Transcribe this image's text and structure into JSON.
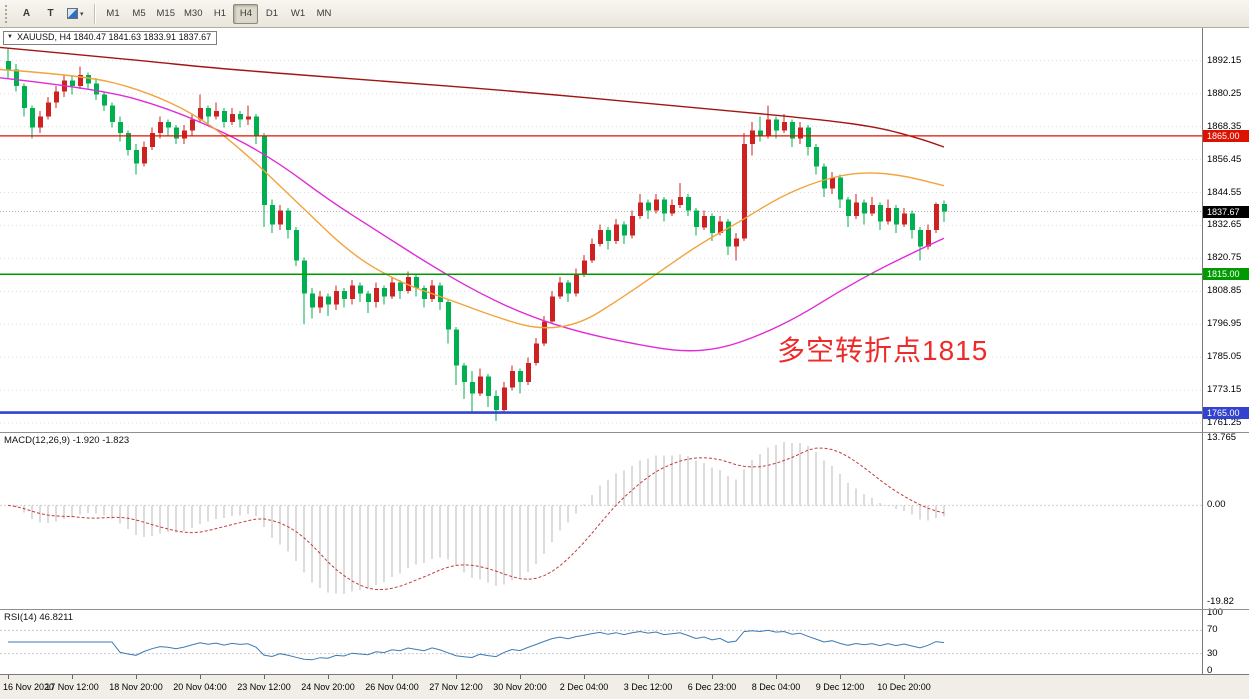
{
  "toolbar": {
    "tools": [
      {
        "label": "A",
        "name": "tool-button-a"
      },
      {
        "label": "T",
        "name": "tool-button-text"
      }
    ],
    "timeframes": [
      "M1",
      "M5",
      "M15",
      "M30",
      "H1",
      "H4",
      "D1",
      "W1",
      "MN"
    ],
    "active_timeframe": "H4"
  },
  "chart": {
    "info_box": "XAUUSD, H4 1840.47 1841.63 1833.91 1837.67",
    "annotation": {
      "text": "多空转折点1815",
      "color": "#ee2b2b"
    },
    "axis_labels": [
      "1892.15",
      "1880.25",
      "1868.35",
      "1856.45",
      "1844.55",
      "1832.65",
      "1820.75",
      "1808.85",
      "1796.95",
      "1785.05",
      "1773.15",
      "1761.25"
    ],
    "time_labels": [
      {
        "label": "16 Nov 2020",
        "bar": 0
      },
      {
        "label": "17 Nov 12:00",
        "bar": 8
      },
      {
        "label": "18 Nov 20:00",
        "bar": 16
      },
      {
        "label": "20 Nov 04:00",
        "bar": 24
      },
      {
        "label": "23 Nov 12:00",
        "bar": 32
      },
      {
        "label": "24 Nov 20:00",
        "bar": 40
      },
      {
        "label": "26 Nov 04:00",
        "bar": 48
      },
      {
        "label": "27 Nov 12:00",
        "bar": 56
      },
      {
        "label": "30 Nov 20:00",
        "bar": 64
      },
      {
        "label": "2 Dec 04:00",
        "bar": 72
      },
      {
        "label": "3 Dec 12:00",
        "bar": 80
      },
      {
        "label": "6 Dec 23:00",
        "bar": 88
      },
      {
        "label": "8 Dec 04:00",
        "bar": 96
      },
      {
        "label": "9 Dec 12:00",
        "bar": 104
      },
      {
        "label": "10 Dec 20:00",
        "bar": 112
      }
    ],
    "hlines": [
      {
        "price": 1865.0,
        "label": "1865.00",
        "color": "#dd1100",
        "width": 1.3
      },
      {
        "price": 1815.0,
        "label": "1815.00",
        "color": "#009b00",
        "width": 1.5
      },
      {
        "price": 1765.0,
        "label": "1765.00",
        "color": "#3342cf",
        "width": 2.6
      }
    ],
    "bid": {
      "price": 1837.67,
      "label": "1837.67",
      "color": "#000000"
    },
    "colors": {
      "up": "#cc2222",
      "down": "#00b050",
      "ma_orange": "#f2a33c",
      "ma_magenta": "#e02ad8",
      "ma_darkred": "#a31515",
      "grid": "#dedede"
    },
    "candles": [
      [
        1892,
        1897,
        1886,
        1889
      ],
      [
        1889,
        1891,
        1881,
        1883
      ],
      [
        1883,
        1884,
        1872,
        1875
      ],
      [
        1875,
        1876,
        1864,
        1868
      ],
      [
        1868,
        1874,
        1866,
        1872
      ],
      [
        1872,
        1879,
        1871,
        1877
      ],
      [
        1877,
        1883,
        1875,
        1881
      ],
      [
        1881,
        1887,
        1879,
        1885
      ],
      [
        1885,
        1887,
        1880,
        1883
      ],
      [
        1883,
        1890,
        1882,
        1887
      ],
      [
        1887,
        1888,
        1882,
        1884
      ],
      [
        1884,
        1886,
        1878,
        1880
      ],
      [
        1880,
        1881,
        1874,
        1876
      ],
      [
        1876,
        1877,
        1868,
        1870
      ],
      [
        1870,
        1872,
        1863,
        1866
      ],
      [
        1866,
        1867,
        1858,
        1860
      ],
      [
        1860,
        1862,
        1851,
        1855
      ],
      [
        1855,
        1863,
        1854,
        1861
      ],
      [
        1861,
        1868,
        1860,
        1866
      ],
      [
        1866,
        1872,
        1864,
        1870
      ],
      [
        1870,
        1871,
        1865,
        1868
      ],
      [
        1868,
        1869,
        1862,
        1864
      ],
      [
        1864,
        1869,
        1862,
        1867
      ],
      [
        1867,
        1873,
        1865,
        1871
      ],
      [
        1871,
        1880,
        1870,
        1875
      ],
      [
        1875,
        1876,
        1869,
        1872
      ],
      [
        1872,
        1877,
        1871,
        1874
      ],
      [
        1874,
        1875,
        1868,
        1870
      ],
      [
        1870,
        1875,
        1869,
        1873
      ],
      [
        1873,
        1874,
        1868,
        1871
      ],
      [
        1871,
        1876,
        1869,
        1872
      ],
      [
        1872,
        1873,
        1862,
        1865
      ],
      [
        1865,
        1866,
        1832,
        1840
      ],
      [
        1840,
        1842,
        1830,
        1833
      ],
      [
        1833,
        1840,
        1831,
        1838
      ],
      [
        1838,
        1839,
        1828,
        1831
      ],
      [
        1831,
        1832,
        1818,
        1820
      ],
      [
        1820,
        1821,
        1797,
        1808
      ],
      [
        1808,
        1810,
        1799,
        1803
      ],
      [
        1803,
        1809,
        1801,
        1807
      ],
      [
        1807,
        1808,
        1800,
        1804
      ],
      [
        1804,
        1811,
        1802,
        1809
      ],
      [
        1809,
        1810,
        1803,
        1806
      ],
      [
        1806,
        1813,
        1804,
        1811
      ],
      [
        1811,
        1812,
        1805,
        1808
      ],
      [
        1808,
        1809,
        1801,
        1805
      ],
      [
        1805,
        1812,
        1803,
        1810
      ],
      [
        1810,
        1811,
        1804,
        1807
      ],
      [
        1807,
        1814,
        1806,
        1812
      ],
      [
        1812,
        1813,
        1806,
        1809
      ],
      [
        1809,
        1816,
        1808,
        1814
      ],
      [
        1814,
        1815,
        1807,
        1810
      ],
      [
        1810,
        1811,
        1803,
        1806
      ],
      [
        1806,
        1813,
        1805,
        1811
      ],
      [
        1811,
        1812,
        1802,
        1805
      ],
      [
        1805,
        1806,
        1790,
        1795
      ],
      [
        1795,
        1796,
        1775,
        1782
      ],
      [
        1782,
        1783,
        1770,
        1776
      ],
      [
        1776,
        1780,
        1765,
        1772
      ],
      [
        1772,
        1781,
        1771,
        1778
      ],
      [
        1778,
        1779,
        1767,
        1771
      ],
      [
        1771,
        1773,
        1762,
        1766
      ],
      [
        1766,
        1776,
        1765,
        1774
      ],
      [
        1774,
        1782,
        1773,
        1780
      ],
      [
        1780,
        1781,
        1772,
        1776
      ],
      [
        1776,
        1785,
        1775,
        1783
      ],
      [
        1783,
        1792,
        1782,
        1790
      ],
      [
        1790,
        1800,
        1789,
        1798
      ],
      [
        1798,
        1809,
        1797,
        1807
      ],
      [
        1807,
        1814,
        1806,
        1812
      ],
      [
        1812,
        1813,
        1805,
        1808
      ],
      [
        1808,
        1817,
        1807,
        1815
      ],
      [
        1815,
        1822,
        1814,
        1820
      ],
      [
        1820,
        1828,
        1819,
        1826
      ],
      [
        1826,
        1833,
        1825,
        1831
      ],
      [
        1831,
        1832,
        1824,
        1827
      ],
      [
        1827,
        1835,
        1826,
        1833
      ],
      [
        1833,
        1834,
        1826,
        1829
      ],
      [
        1829,
        1838,
        1828,
        1836
      ],
      [
        1836,
        1844,
        1835,
        1841
      ],
      [
        1841,
        1842,
        1835,
        1838
      ],
      [
        1838,
        1844,
        1837,
        1842
      ],
      [
        1842,
        1843,
        1834,
        1837
      ],
      [
        1837,
        1842,
        1836,
        1840
      ],
      [
        1840,
        1848,
        1839,
        1843
      ],
      [
        1843,
        1844,
        1836,
        1838
      ],
      [
        1838,
        1839,
        1829,
        1832
      ],
      [
        1832,
        1838,
        1831,
        1836
      ],
      [
        1836,
        1837,
        1827,
        1830
      ],
      [
        1830,
        1836,
        1829,
        1834
      ],
      [
        1834,
        1835,
        1822,
        1825
      ],
      [
        1825,
        1830,
        1820,
        1828
      ],
      [
        1828,
        1866,
        1827,
        1862
      ],
      [
        1862,
        1870,
        1858,
        1867
      ],
      [
        1867,
        1872,
        1863,
        1865
      ],
      [
        1865,
        1876,
        1864,
        1871
      ],
      [
        1871,
        1872,
        1864,
        1867
      ],
      [
        1867,
        1873,
        1866,
        1870
      ],
      [
        1870,
        1871,
        1861,
        1864
      ],
      [
        1864,
        1870,
        1862,
        1868
      ],
      [
        1868,
        1869,
        1858,
        1861
      ],
      [
        1861,
        1862,
        1851,
        1854
      ],
      [
        1854,
        1855,
        1843,
        1846
      ],
      [
        1846,
        1852,
        1844,
        1850
      ],
      [
        1850,
        1851,
        1839,
        1842
      ],
      [
        1842,
        1843,
        1832,
        1836
      ],
      [
        1836,
        1844,
        1835,
        1841
      ],
      [
        1841,
        1842,
        1833,
        1837
      ],
      [
        1837,
        1843,
        1836,
        1840
      ],
      [
        1840,
        1841,
        1831,
        1834
      ],
      [
        1834,
        1842,
        1833,
        1839
      ],
      [
        1839,
        1840,
        1830,
        1833
      ],
      [
        1833,
        1839,
        1832,
        1837
      ],
      [
        1837,
        1838,
        1828,
        1831
      ],
      [
        1831,
        1832,
        1820,
        1825
      ],
      [
        1825,
        1833,
        1824,
        1831
      ],
      [
        1831,
        1841,
        1830,
        1840.47
      ],
      [
        1840.47,
        1841.63,
        1833.91,
        1837.67
      ]
    ],
    "ma_magenta": [
      [
        -1,
        1886
      ],
      [
        11.5,
        1882
      ],
      [
        20,
        1875
      ],
      [
        28,
        1865
      ],
      [
        34,
        1855
      ],
      [
        40,
        1842
      ],
      [
        46.5,
        1830
      ],
      [
        53,
        1818
      ],
      [
        59,
        1808
      ],
      [
        65,
        1800
      ],
      [
        71.5,
        1794
      ],
      [
        78,
        1790
      ],
      [
        84,
        1787
      ],
      [
        89,
        1788
      ],
      [
        94,
        1793
      ],
      [
        99,
        1800
      ],
      [
        104,
        1809
      ],
      [
        109,
        1817
      ],
      [
        114,
        1824
      ],
      [
        117,
        1828
      ]
    ],
    "ma_orange": [
      [
        -1,
        1889
      ],
      [
        9,
        1887
      ],
      [
        16.5,
        1882
      ],
      [
        24,
        1872
      ],
      [
        30,
        1858
      ],
      [
        36.5,
        1840
      ],
      [
        43,
        1822
      ],
      [
        49,
        1812
      ],
      [
        55,
        1806
      ],
      [
        61.5,
        1799
      ],
      [
        66.5,
        1795
      ],
      [
        71.5,
        1797
      ],
      [
        76.5,
        1806
      ],
      [
        81.5,
        1816
      ],
      [
        86.5,
        1826
      ],
      [
        91.5,
        1834
      ],
      [
        96.5,
        1843
      ],
      [
        101.5,
        1849
      ],
      [
        106.5,
        1852
      ],
      [
        111.5,
        1851
      ],
      [
        117,
        1847
      ]
    ],
    "ma_darkred": [
      [
        -1,
        1897
      ],
      [
        14,
        1893
      ],
      [
        27.5,
        1889
      ],
      [
        46,
        1885
      ],
      [
        64,
        1881
      ],
      [
        83,
        1876
      ],
      [
        101.5,
        1871
      ],
      [
        109,
        1868
      ],
      [
        114,
        1864
      ],
      [
        117,
        1861
      ]
    ]
  },
  "macd": {
    "label": "MACD(12,26,9) -1.920 -1.823",
    "axis": [
      "13.765",
      "0.00",
      "-19.82"
    ],
    "params": {
      "fast": 12,
      "slow": 26,
      "signal": 9
    }
  },
  "rsi": {
    "label": "RSI(14) 46.8211",
    "axis": [
      "100",
      "70",
      "30",
      "0"
    ],
    "period": 14,
    "levels": [
      70,
      30
    ]
  }
}
